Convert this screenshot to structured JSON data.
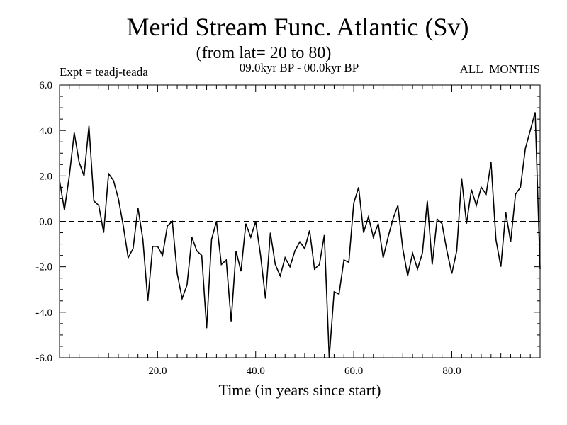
{
  "chart_data": {
    "type": "line",
    "title": "Merid Stream Func. Atlantic (Sv)",
    "subtitle": "(from lat= 20 to 80)",
    "experiment": "Expt = teadj-teada",
    "period": "09.0kyr BP - 00.0kyr BP",
    "months": "ALL_MONTHS",
    "xlabel": "Time (in years since start)",
    "ylabel": "",
    "xlim": [
      0,
      98
    ],
    "ylim": [
      -6,
      6
    ],
    "x_ticks": [
      20,
      40,
      60,
      80
    ],
    "x_tick_labels": [
      "20.0",
      "40.0",
      "60.0",
      "80.0"
    ],
    "y_ticks": [
      -6,
      -4,
      -2,
      0,
      2,
      4,
      6
    ],
    "y_tick_labels": [
      "-6.0",
      "-4.0",
      "-2.0",
      "0.0",
      "2.0",
      "4.0",
      "6.0"
    ],
    "reference_line": {
      "y": 0,
      "style": "dashed"
    },
    "series": [
      {
        "name": "teadj-teada",
        "color": "#000000",
        "x": [
          0,
          1,
          2,
          3,
          4,
          5,
          6,
          7,
          8,
          9,
          10,
          11,
          12,
          13,
          14,
          15,
          16,
          17,
          18,
          19,
          20,
          21,
          22,
          23,
          24,
          25,
          26,
          27,
          28,
          29,
          30,
          31,
          32,
          33,
          34,
          35,
          36,
          37,
          38,
          39,
          40,
          41,
          42,
          43,
          44,
          45,
          46,
          47,
          48,
          49,
          50,
          51,
          52,
          53,
          54,
          55,
          56,
          57,
          58,
          59,
          60,
          61,
          62,
          63,
          64,
          65,
          66,
          67,
          68,
          69,
          70,
          71,
          72,
          73,
          74,
          75,
          76,
          77,
          78,
          79,
          80,
          81,
          82,
          83,
          84,
          85,
          86,
          87,
          88,
          89,
          90,
          91,
          92,
          93,
          94,
          95,
          96,
          97,
          98
        ],
        "values": [
          1.8,
          0.5,
          2.0,
          3.9,
          2.6,
          2.0,
          4.2,
          0.9,
          0.7,
          -0.5,
          2.1,
          1.8,
          1.0,
          -0.2,
          -1.6,
          -1.2,
          0.6,
          -0.8,
          -3.5,
          -1.1,
          -1.1,
          -1.5,
          -0.2,
          0.0,
          -2.3,
          -3.4,
          -2.8,
          -0.7,
          -1.3,
          -1.5,
          -4.7,
          -0.8,
          0.0,
          -1.9,
          -1.7,
          -4.4,
          -1.3,
          -2.2,
          -0.1,
          -0.7,
          0.0,
          -1.5,
          -3.4,
          -0.5,
          -1.9,
          -2.4,
          -1.6,
          -2.0,
          -1.3,
          -0.9,
          -1.2,
          -0.4,
          -2.1,
          -1.9,
          -0.6,
          -6.0,
          -3.1,
          -3.2,
          -1.7,
          -1.8,
          0.8,
          1.5,
          -0.5,
          0.2,
          -0.7,
          -0.1,
          -1.6,
          -0.7,
          0.1,
          0.7,
          -1.2,
          -2.4,
          -1.4,
          -2.1,
          -1.4,
          0.9,
          -1.9,
          0.1,
          -0.1,
          -1.3,
          -2.3,
          -1.3,
          1.9,
          -0.1,
          1.4,
          0.7,
          1.5,
          1.2,
          2.6,
          -0.8,
          -2.0,
          0.4,
          -0.9,
          1.2,
          1.5,
          3.2,
          4.0,
          4.8,
          -2.1
        ]
      }
    ]
  }
}
